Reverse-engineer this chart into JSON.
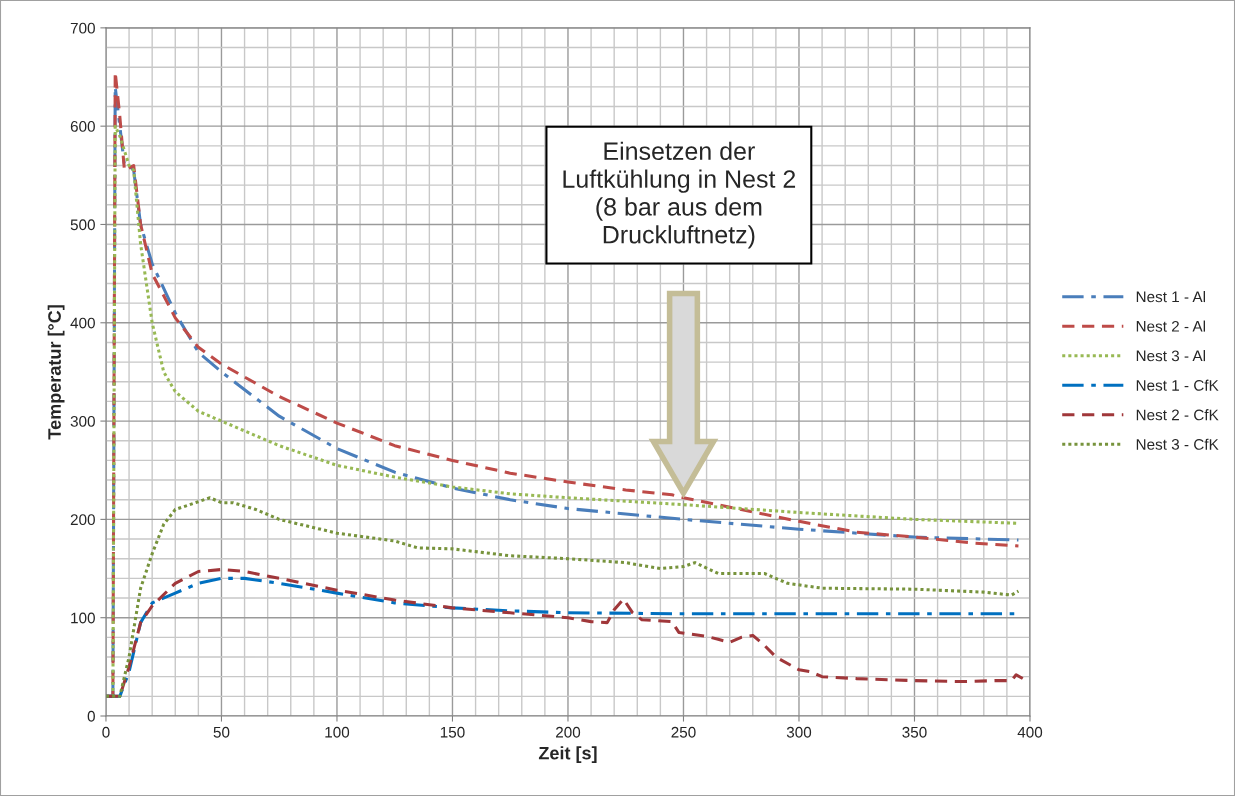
{
  "chart_data": {
    "type": "line",
    "xlabel": "Zeit [s]",
    "ylabel": "Temperatur [°C]",
    "xlim": [
      0,
      400
    ],
    "ylim": [
      0,
      700
    ],
    "xticks": [
      0,
      {
        "value": 10,
        "label": null
      },
      {
        "value": 20,
        "label": null
      },
      {
        "value": 30,
        "label": null
      },
      {
        "value": 40,
        "label": null
      },
      50,
      {
        "value": 60,
        "label": null
      },
      {
        "value": 70,
        "label": null
      },
      {
        "value": 80,
        "label": null
      },
      {
        "value": 90,
        "label": null
      },
      100,
      {
        "value": 110,
        "label": null
      },
      {
        "value": 120,
        "label": null
      },
      {
        "value": 130,
        "label": null
      },
      {
        "value": 140,
        "label": null
      },
      150,
      {
        "value": 160,
        "label": null
      },
      {
        "value": 170,
        "label": null
      },
      {
        "value": 180,
        "label": null
      },
      {
        "value": 190,
        "label": null
      },
      200,
      {
        "value": 210,
        "label": null
      },
      {
        "value": 220,
        "label": null
      },
      {
        "value": 230,
        "label": null
      },
      {
        "value": 240,
        "label": null
      },
      250,
      {
        "value": 260,
        "label": null
      },
      {
        "value": 270,
        "label": null
      },
      {
        "value": 280,
        "label": null
      },
      {
        "value": 290,
        "label": null
      },
      300,
      {
        "value": 310,
        "label": null
      },
      {
        "value": 320,
        "label": null
      },
      {
        "value": 330,
        "label": null
      },
      {
        "value": 340,
        "label": null
      },
      350,
      {
        "value": 360,
        "label": null
      },
      {
        "value": 370,
        "label": null
      },
      {
        "value": 380,
        "label": null
      },
      {
        "value": 390,
        "label": null
      },
      400
    ],
    "yticks": [
      0,
      {
        "value": 20,
        "label": null
      },
      {
        "value": 40,
        "label": null
      },
      {
        "value": 60,
        "label": null
      },
      {
        "value": 80,
        "label": null
      },
      100,
      {
        "value": 120,
        "label": null
      },
      {
        "value": 140,
        "label": null
      },
      {
        "value": 160,
        "label": null
      },
      {
        "value": 180,
        "label": null
      },
      200,
      {
        "value": 220,
        "label": null
      },
      {
        "value": 240,
        "label": null
      },
      {
        "value": 260,
        "label": null
      },
      {
        "value": 280,
        "label": null
      },
      300,
      {
        "value": 320,
        "label": null
      },
      {
        "value": 340,
        "label": null
      },
      {
        "value": 360,
        "label": null
      },
      {
        "value": 380,
        "label": null
      },
      400,
      {
        "value": 420,
        "label": null
      },
      {
        "value": 440,
        "label": null
      },
      {
        "value": 460,
        "label": null
      },
      {
        "value": 480,
        "label": null
      },
      500,
      {
        "value": 520,
        "label": null
      },
      {
        "value": 540,
        "label": null
      },
      {
        "value": 560,
        "label": null
      },
      {
        "value": 580,
        "label": null
      },
      600,
      {
        "value": 620,
        "label": null
      },
      {
        "value": 640,
        "label": null
      },
      {
        "value": 660,
        "label": null
      },
      {
        "value": 680,
        "label": null
      },
      700
    ],
    "grid": true,
    "legend": "right",
    "marker": "none",
    "annotations": [
      "Einsetzen der\nLuftkühlung in Nest 2\n(8 bar aus dem\nDruckluftnetz)"
    ],
    "series": [
      {
        "name": "Nest 1 - Al",
        "color": "#4a7ebb",
        "line_style": "dashdot",
        "x": [
          0,
          3,
          4,
          6,
          8,
          10,
          12,
          15,
          20,
          30,
          40,
          50,
          75,
          100,
          125,
          150,
          175,
          200,
          250,
          300,
          350,
          395
        ],
        "values": [
          20,
          20,
          640,
          600,
          560,
          560,
          555,
          500,
          460,
          410,
          370,
          350,
          305,
          272,
          248,
          232,
          220,
          211,
          200,
          190,
          182,
          179
        ]
      },
      {
        "name": "Nest 2 - Al",
        "color": "#be4b48",
        "line_style": "dashed",
        "x": [
          0,
          3,
          4,
          6,
          8,
          12,
          15,
          20,
          30,
          40,
          50,
          75,
          100,
          125,
          150,
          175,
          200,
          225,
          245,
          250,
          275,
          300,
          325,
          350,
          375,
          395
        ],
        "values": [
          20,
          20,
          655,
          610,
          555,
          560,
          500,
          450,
          405,
          375,
          358,
          325,
          298,
          275,
          260,
          247,
          238,
          230,
          225,
          222,
          210,
          198,
          187,
          182,
          176,
          173
        ]
      },
      {
        "name": "Nest 3 - Al",
        "color": "#98b954",
        "line_style": "dotted",
        "x": [
          0,
          3,
          4,
          6,
          10,
          12,
          15,
          20,
          25,
          30,
          40,
          50,
          75,
          100,
          125,
          150,
          175,
          200,
          250,
          300,
          350,
          395
        ],
        "values": [
          20,
          20,
          600,
          590,
          560,
          555,
          480,
          400,
          350,
          330,
          310,
          300,
          275,
          255,
          243,
          233,
          226,
          222,
          215,
          207,
          200,
          196
        ]
      },
      {
        "name": "Nest 1 - CfK",
        "color": "#0070c0",
        "line_style": "dashdot",
        "x": [
          0,
          6,
          10,
          15,
          20,
          30,
          40,
          50,
          60,
          75,
          100,
          125,
          150,
          175,
          200,
          250,
          300,
          350,
          395
        ],
        "values": [
          20,
          20,
          45,
          95,
          115,
          125,
          135,
          140,
          140,
          135,
          125,
          115,
          110,
          107,
          105,
          104,
          104,
          104,
          104
        ]
      },
      {
        "name": "Nest 2 - CfK",
        "color": "#a0373a",
        "line_style": "dashed",
        "x": [
          0,
          6,
          10,
          15,
          20,
          30,
          40,
          50,
          60,
          75,
          100,
          125,
          150,
          175,
          200,
          210,
          217,
          220,
          224,
          228,
          232,
          245,
          248,
          260,
          265,
          270,
          275,
          280,
          285,
          290,
          300,
          305,
          310,
          325,
          350,
          370,
          385,
          392,
          394,
          397
        ],
        "values": [
          20,
          20,
          50,
          95,
          112,
          135,
          147,
          149,
          147,
          140,
          128,
          118,
          110,
          105,
          100,
          96,
          95,
          108,
          119,
          105,
          98,
          96,
          85,
          81,
          78,
          75,
          80,
          82,
          72,
          60,
          47,
          45,
          40,
          38,
          36,
          35,
          36,
          36,
          42,
          38
        ]
      },
      {
        "name": "Nest 3 - CfK",
        "color": "#77933c",
        "line_style": "dotted",
        "x": [
          0,
          6,
          10,
          15,
          20,
          25,
          30,
          40,
          45,
          50,
          55,
          65,
          75,
          100,
          125,
          135,
          150,
          175,
          200,
          225,
          240,
          250,
          255,
          265,
          275,
          285,
          295,
          310,
          350,
          380,
          392,
          395
        ],
        "values": [
          20,
          20,
          60,
          130,
          165,
          195,
          210,
          218,
          222,
          217,
          217,
          210,
          200,
          186,
          178,
          171,
          170,
          163,
          160,
          156,
          150,
          152,
          156,
          145,
          145,
          145,
          135,
          130,
          129,
          126,
          123,
          127
        ]
      }
    ]
  }
}
